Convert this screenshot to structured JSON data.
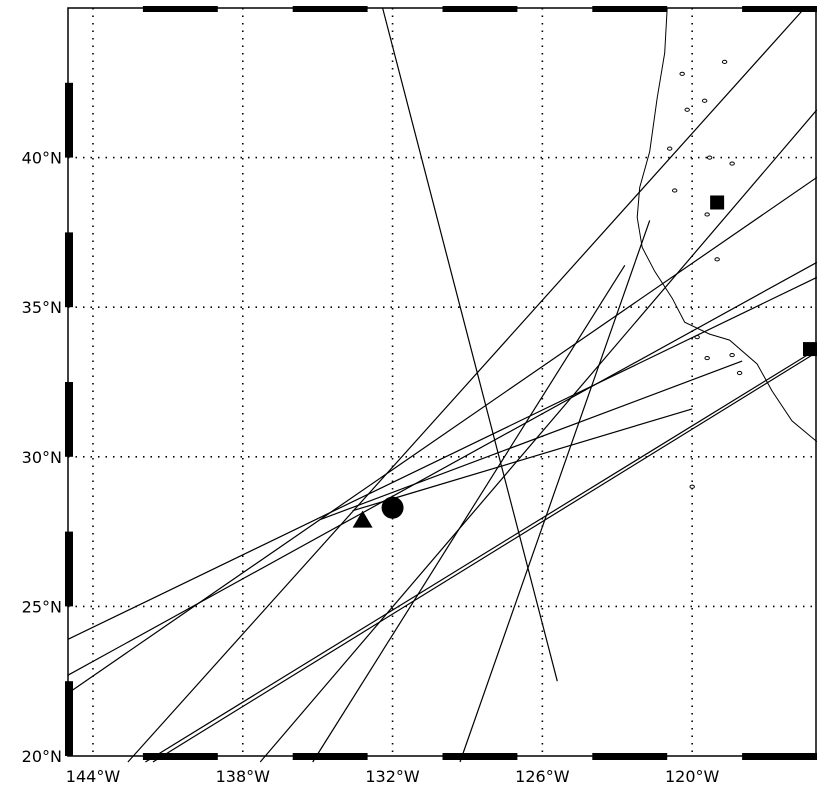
{
  "map": {
    "lon_range": [
      -145,
      -115
    ],
    "lat_range": [
      20,
      45
    ],
    "grid": "dotted",
    "frame": "alternating black/white bars",
    "lat_ticks": [
      {
        "value": 40,
        "label": "40°N"
      },
      {
        "value": 35,
        "label": "35°N"
      },
      {
        "value": 30,
        "label": "30°N"
      },
      {
        "value": 25,
        "label": "25°N"
      },
      {
        "value": 20,
        "label": "20°N"
      }
    ],
    "lon_ticks": [
      {
        "value": -144,
        "label": "144°W"
      },
      {
        "value": -138,
        "label": "138°W"
      },
      {
        "value": -132,
        "label": "132°W"
      },
      {
        "value": -126,
        "label": "126°W"
      },
      {
        "value": -120,
        "label": "120°W"
      }
    ],
    "tracks": [
      [
        [
          -132.4,
          45.0
        ],
        [
          -125.4,
          22.5
        ]
      ],
      [
        [
          -145.0,
          22.1
        ],
        [
          -114.9,
          39.4
        ]
      ],
      [
        [
          -142.6,
          19.8
        ],
        [
          -115.6,
          44.9
        ]
      ],
      [
        [
          -137.3,
          19.8
        ],
        [
          -115.0,
          41.6
        ]
      ],
      [
        [
          -145.0,
          23.9
        ],
        [
          -115.0,
          36.0
        ]
      ],
      [
        [
          -145.0,
          22.7
        ],
        [
          -115.0,
          36.5
        ]
      ],
      [
        [
          -141.9,
          19.8
        ],
        [
          -115.0,
          33.6
        ]
      ],
      [
        [
          -141.6,
          19.8
        ],
        [
          -115.0,
          33.5
        ]
      ],
      [
        [
          -135.2,
          19.8
        ],
        [
          -122.7,
          36.4
        ]
      ],
      [
        [
          -129.3,
          19.8
        ],
        [
          -121.7,
          37.9
        ]
      ],
      [
        [
          -133.6,
          28.2
        ],
        [
          -120.0,
          31.6
        ]
      ],
      [
        [
          -134.9,
          27.9
        ],
        [
          -118.0,
          33.2
        ]
      ]
    ],
    "markers": [
      {
        "shape": "triangle",
        "lon": -133.2,
        "lat": 27.9
      },
      {
        "shape": "circle",
        "lon": -132.0,
        "lat": 28.3
      },
      {
        "shape": "square",
        "lon": -119.0,
        "lat": 38.5
      },
      {
        "shape": "square",
        "lon": -115.0,
        "lat": 33.6
      }
    ],
    "coastline": [
      [
        -121.0,
        45.0
      ],
      [
        -121.1,
        43.5
      ],
      [
        -121.4,
        42.0
      ],
      [
        -121.7,
        40.2
      ],
      [
        -122.1,
        39.0
      ],
      [
        -122.2,
        38.0
      ],
      [
        -122.0,
        37.0
      ],
      [
        -121.5,
        36.2
      ],
      [
        -120.8,
        35.3
      ],
      [
        -120.3,
        34.5
      ],
      [
        -119.3,
        34.1
      ],
      [
        -118.5,
        33.9
      ],
      [
        -117.4,
        33.1
      ],
      [
        -116.8,
        32.2
      ],
      [
        -116.0,
        31.2
      ],
      [
        -115.0,
        30.5
      ]
    ],
    "islands": [
      [
        -119.8,
        34.0
      ],
      [
        -119.4,
        33.3
      ],
      [
        -118.4,
        33.4
      ],
      [
        -118.1,
        32.8
      ],
      [
        -120.0,
        29.0
      ],
      [
        -120.9,
        40.3
      ],
      [
        -119.3,
        40.0
      ],
      [
        -119.5,
        41.9
      ],
      [
        -118.7,
        43.2
      ],
      [
        -119.4,
        38.1
      ],
      [
        -118.4,
        39.8
      ],
      [
        -119.0,
        36.6
      ],
      [
        -120.4,
        42.8
      ],
      [
        -120.2,
        41.6
      ],
      [
        -120.7,
        38.9
      ]
    ]
  }
}
